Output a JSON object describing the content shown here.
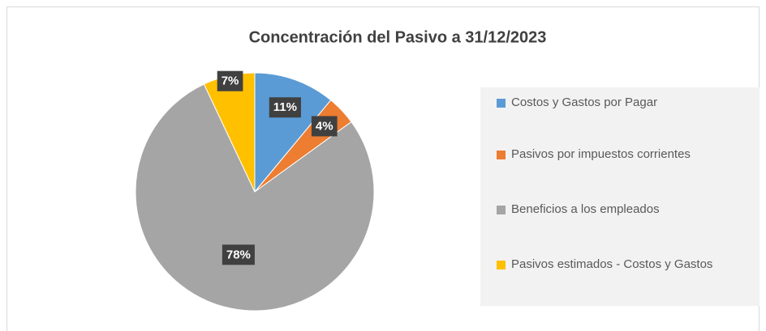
{
  "chart_data": {
    "type": "pie",
    "title": "Concentración del Pasivo a 31/12/2023",
    "categories": [
      "Costos y Gastos por Pagar",
      "Pasivos por impuestos corrientes",
      "Beneficios a los empleados",
      "Pasivos estimados - Costos y Gastos"
    ],
    "values": [
      11,
      4,
      78,
      7
    ],
    "value_labels": [
      "11%",
      "4%",
      "78%",
      "7%"
    ],
    "colors": [
      "#5b9bd5",
      "#ed7d31",
      "#a5a5a5",
      "#ffc000"
    ],
    "legend": "right"
  }
}
